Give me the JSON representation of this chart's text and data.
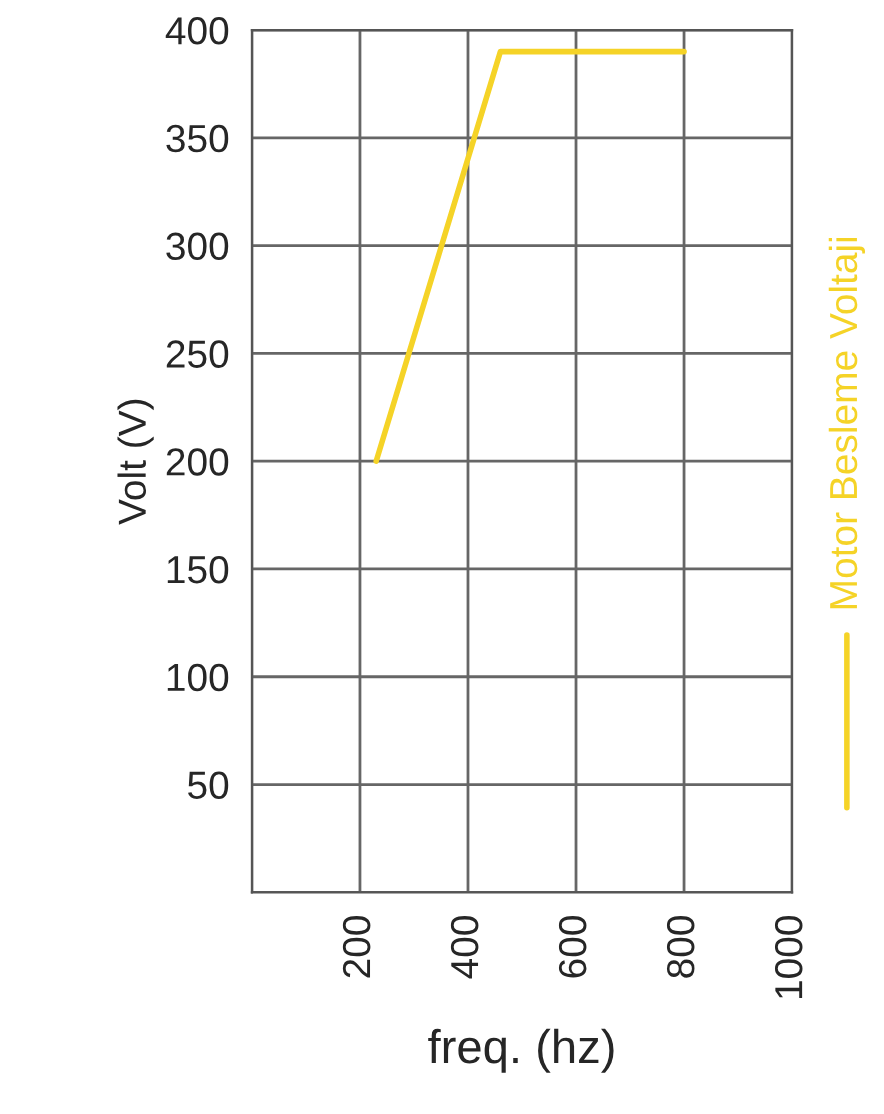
{
  "chart_data": {
    "type": "line",
    "xlabel": "freq. (hz)",
    "ylabel": "Volt (V)",
    "x": [
      230,
      460,
      800
    ],
    "series": [
      {
        "name": "Motor Besleme Voltaji",
        "color": "#f5d327",
        "values": [
          200,
          390,
          390
        ]
      }
    ],
    "xlim": [
      0,
      1000
    ],
    "xticks": [
      {
        "value": 0,
        "label": null
      },
      200,
      400,
      600,
      800,
      1000
    ],
    "ylim": [
      0,
      400
    ],
    "yticks": [
      {
        "value": 0,
        "label": null
      },
      50,
      100,
      150,
      200,
      250,
      300,
      350,
      400
    ],
    "grid": true,
    "legend": "right",
    "marker": "none",
    "line_style": "solid"
  }
}
